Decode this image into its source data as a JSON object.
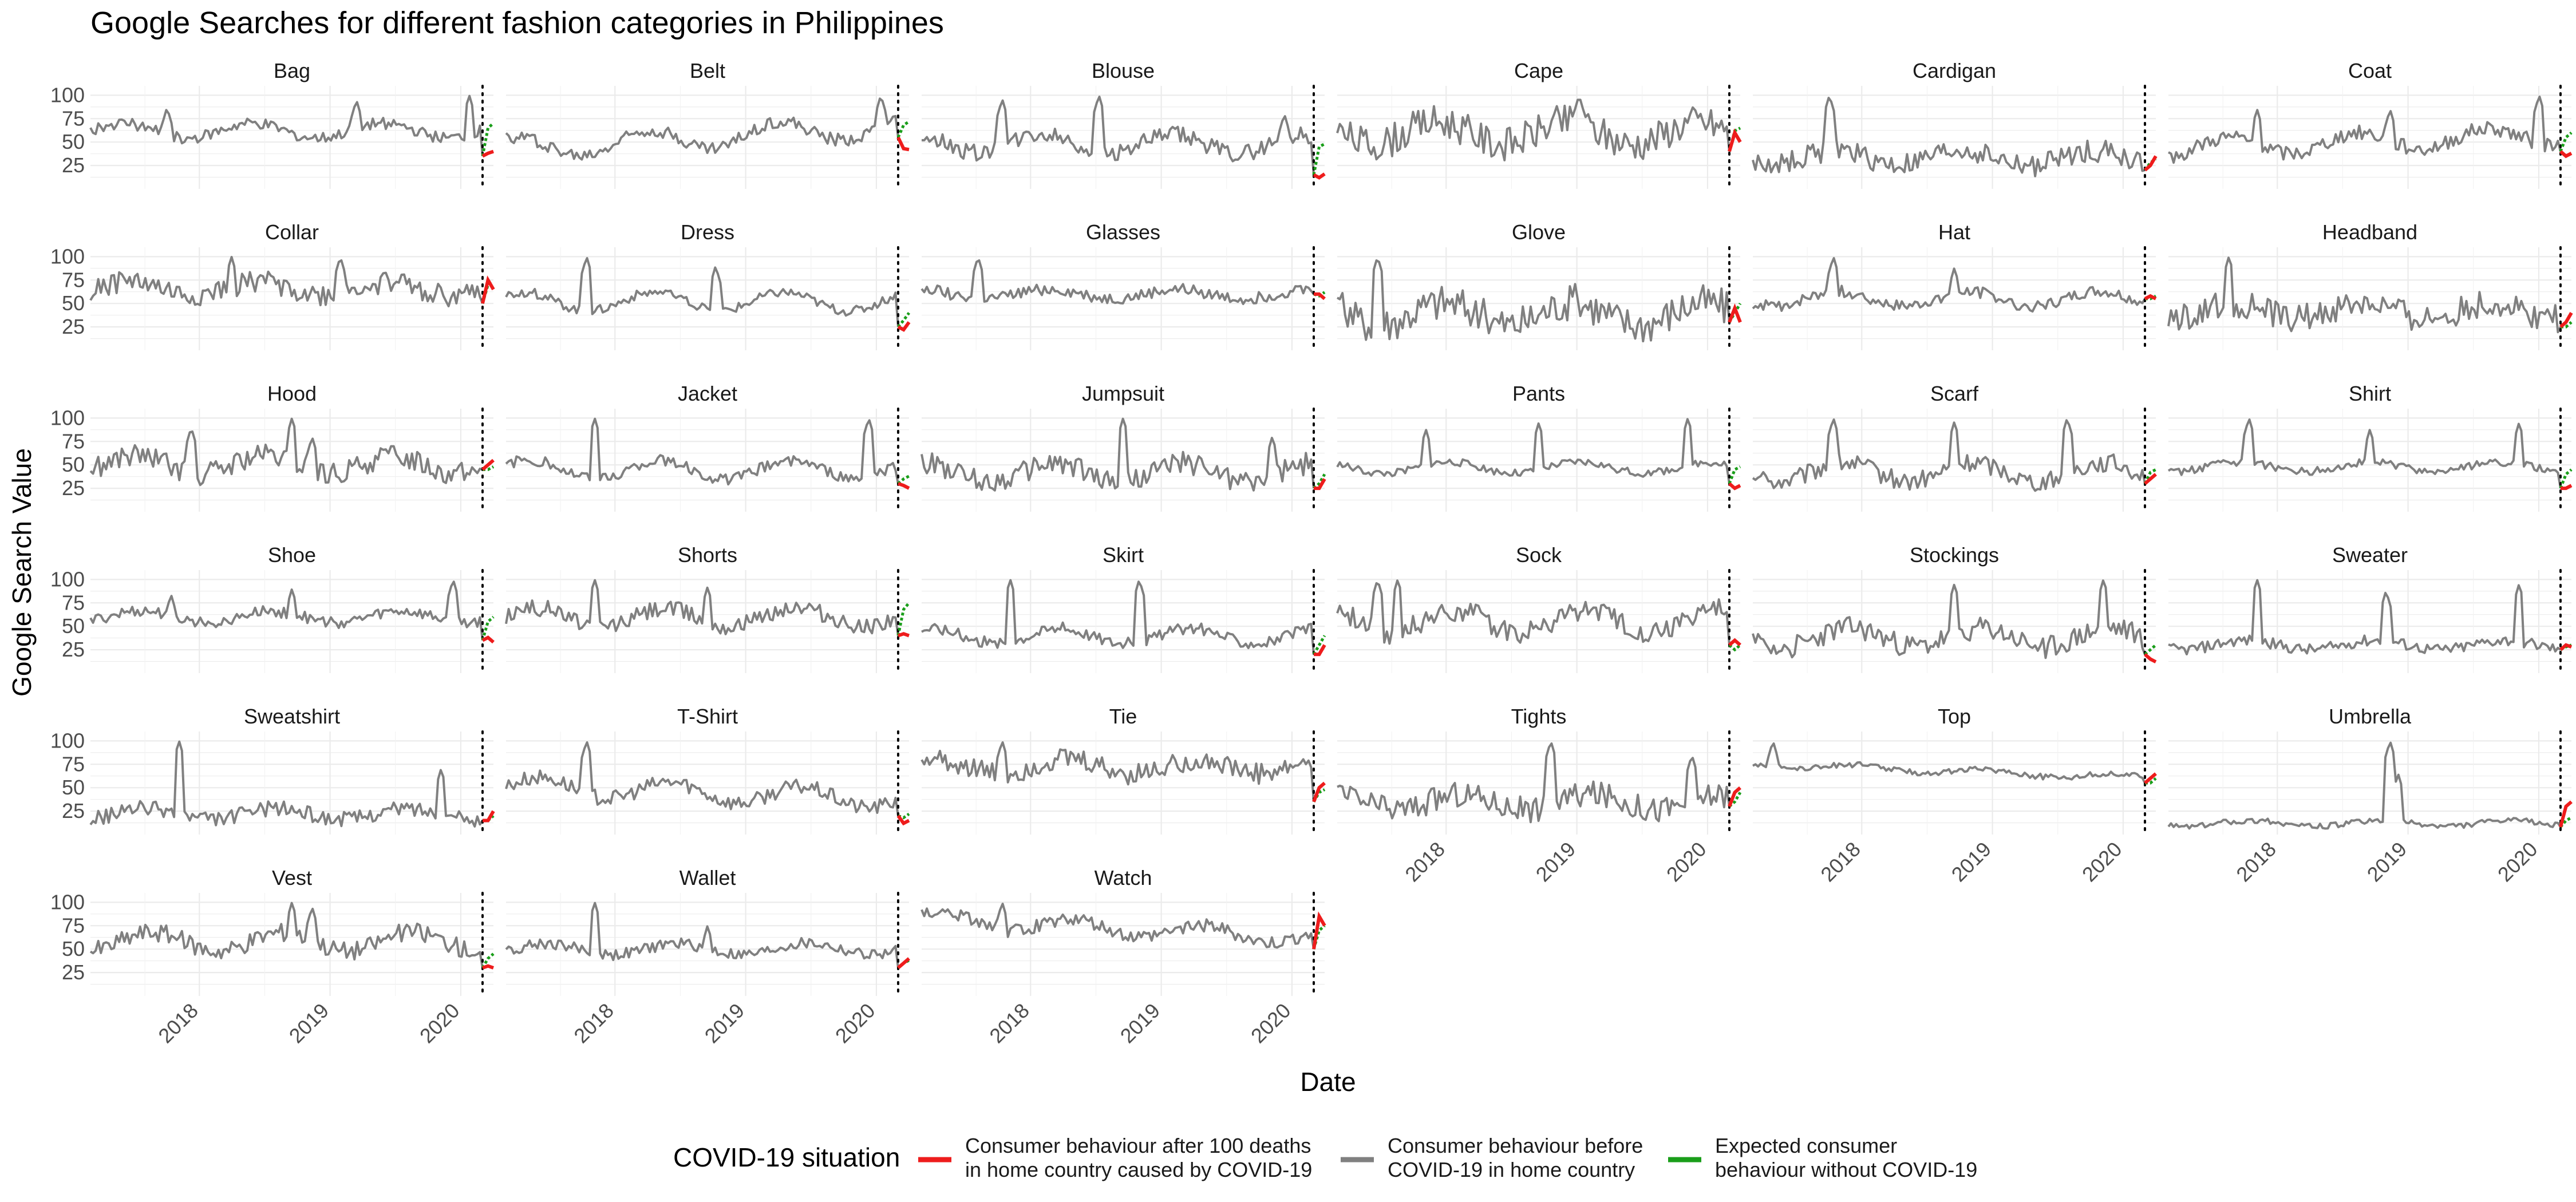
{
  "chart_data": {
    "type": "line",
    "title": "Google Searches for different fashion categories in Philippines",
    "xlabel": "Date",
    "ylabel": "Google Search Value",
    "x_range": [
      "2017-03",
      "2020-04"
    ],
    "x_ticks": [
      "2018",
      "2019",
      "2020"
    ],
    "y_ticks": [
      25,
      50,
      75,
      100
    ],
    "ylim": [
      0,
      110
    ],
    "covid_marker_date": "2020-03",
    "grid": true,
    "legend": {
      "title": "COVID-19 situation",
      "position": "bottom",
      "entries": [
        {
          "key": "after",
          "lines": [
            "Consumer behaviour after 100 deaths",
            "in home country caused by COVID-19"
          ],
          "color": "#ee1c1c"
        },
        {
          "key": "before",
          "lines": [
            "Consumer behaviour before",
            "COVID-19 in home country"
          ],
          "color": "#808080"
        },
        {
          "key": "expected",
          "lines": [
            "Expected consumer",
            "behaviour without COVID-19"
          ],
          "color": "#1a9e1a"
        }
      ]
    },
    "panels": [
      {
        "name": "Bag",
        "base": 62,
        "amp": 8,
        "noise": 6,
        "peaks": [
          [
            0.19,
            87
          ],
          [
            0.66,
            95
          ],
          [
            0.94,
            100
          ]
        ],
        "drop": 35,
        "after": [
          38,
          40
        ],
        "expected": [
          65,
          70
        ]
      },
      {
        "name": "Belt",
        "base": 55,
        "amp": 12,
        "noise": 7,
        "trend": 25,
        "peaks": [
          [
            0.93,
            100
          ]
        ],
        "drop": 55,
        "after": [
          43,
          42
        ],
        "expected": [
          68,
          72
        ]
      },
      {
        "name": "Blouse",
        "base": 48,
        "amp": 10,
        "noise": 9,
        "peaks": [
          [
            0.2,
            96
          ],
          [
            0.44,
            100
          ],
          [
            0.9,
            80
          ]
        ],
        "drop": 15,
        "after": [
          12,
          16
        ],
        "expected": [
          45,
          48
        ]
      },
      {
        "name": "Cape",
        "base": 60,
        "amp": 12,
        "noise": 18,
        "peaks": [
          [
            0.6,
            100
          ]
        ],
        "drop": 40,
        "after": [
          60,
          50
        ],
        "expected": [
          62,
          65
        ]
      },
      {
        "name": "Cardigan",
        "base": 33,
        "amp": 8,
        "noise": 12,
        "peaks": [
          [
            0.19,
            100
          ]
        ],
        "drop": 20,
        "after": [
          25,
          35
        ],
        "expected": [
          28,
          32
        ]
      },
      {
        "name": "Coat",
        "base": 50,
        "amp": 10,
        "noise": 8,
        "trend": 15,
        "peaks": [
          [
            0.22,
            85
          ],
          [
            0.55,
            85
          ],
          [
            0.92,
            100
          ]
        ],
        "drop": 40,
        "after": [
          35,
          38
        ],
        "expected": [
          55,
          60
        ]
      },
      {
        "name": "Collar",
        "base": 65,
        "amp": 8,
        "noise": 12,
        "peaks": [
          [
            0.35,
            100
          ],
          [
            0.62,
            100
          ]
        ],
        "drop": 50,
        "after": [
          75,
          65
        ],
        "expected": [
          70,
          72
        ]
      },
      {
        "name": "Dress",
        "base": 52,
        "amp": 10,
        "noise": 5,
        "peaks": [
          [
            0.2,
            100
          ],
          [
            0.52,
            90
          ]
        ],
        "drop": 25,
        "after": [
          22,
          30
        ],
        "expected": [
          32,
          40
        ]
      },
      {
        "name": "Glasses",
        "base": 60,
        "amp": 5,
        "noise": 6,
        "peaks": [
          [
            0.14,
            100
          ]
        ],
        "drop": 60,
        "after": [
          60,
          55
        ],
        "expected": [
          58,
          62
        ]
      },
      {
        "name": "Glove",
        "base": 40,
        "amp": 12,
        "noise": 20,
        "peaks": [
          [
            0.1,
            100
          ]
        ],
        "drop": 30,
        "after": [
          45,
          30
        ],
        "expected": [
          40,
          50
        ]
      },
      {
        "name": "Hat",
        "base": 55,
        "amp": 8,
        "noise": 6,
        "peaks": [
          [
            0.2,
            100
          ],
          [
            0.5,
            88
          ]
        ],
        "drop": 55,
        "after": [
          58,
          55
        ],
        "expected": [
          55,
          58
        ]
      },
      {
        "name": "Headband",
        "base": 42,
        "amp": 8,
        "noise": 15,
        "peaks": [
          [
            0.15,
            100
          ]
        ],
        "drop": 25,
        "after": [
          30,
          40
        ],
        "expected": [
          25,
          30
        ]
      },
      {
        "name": "Hood",
        "base": 50,
        "amp": 10,
        "noise": 12,
        "peaks": [
          [
            0.25,
            90
          ],
          [
            0.5,
            100
          ],
          [
            0.55,
            80
          ]
        ],
        "drop": 45,
        "after": [
          50,
          55
        ],
        "expected": [
          45,
          48
        ]
      },
      {
        "name": "Jacket",
        "base": 45,
        "amp": 10,
        "noise": 6,
        "peaks": [
          [
            0.22,
            100
          ],
          [
            0.9,
            100
          ]
        ],
        "drop": 30,
        "after": [
          28,
          25
        ],
        "expected": [
          35,
          38
        ]
      },
      {
        "name": "Jumpsuit",
        "base": 42,
        "amp": 10,
        "noise": 12,
        "peaks": [
          [
            0.5,
            100
          ],
          [
            0.87,
            80
          ]
        ],
        "drop": 25,
        "after": [
          25,
          35
        ],
        "expected": [
          30,
          40
        ]
      },
      {
        "name": "Pants",
        "base": 47,
        "amp": 6,
        "noise": 4,
        "peaks": [
          [
            0.22,
            88
          ],
          [
            0.5,
            95
          ],
          [
            0.87,
            100
          ]
        ],
        "drop": 30,
        "after": [
          25,
          28
        ],
        "expected": [
          45,
          48
        ]
      },
      {
        "name": "Scarf",
        "base": 42,
        "amp": 10,
        "noise": 10,
        "peaks": [
          [
            0.2,
            100
          ],
          [
            0.5,
            96
          ],
          [
            0.78,
            100
          ]
        ],
        "drop": 30,
        "after": [
          35,
          40
        ],
        "expected": [
          42,
          45
        ]
      },
      {
        "name": "Shirt",
        "base": 48,
        "amp": 5,
        "noise": 4,
        "peaks": [
          [
            0.2,
            100
          ],
          [
            0.5,
            88
          ],
          [
            0.87,
            95
          ]
        ],
        "drop": 25,
        "after": [
          25,
          28
        ],
        "expected": [
          40,
          45
        ]
      },
      {
        "name": "Shoe",
        "base": 60,
        "amp": 6,
        "noise": 6,
        "peaks": [
          [
            0.2,
            84
          ],
          [
            0.5,
            90
          ],
          [
            0.9,
            100
          ]
        ],
        "drop": 35,
        "after": [
          38,
          33
        ],
        "expected": [
          55,
          60
        ]
      },
      {
        "name": "Shorts",
        "base": 60,
        "amp": 10,
        "noise": 9,
        "peaks": [
          [
            0.22,
            100
          ],
          [
            0.5,
            92
          ]
        ],
        "drop": 40,
        "after": [
          42,
          40
        ],
        "expected": [
          68,
          75
        ]
      },
      {
        "name": "Skirt",
        "base": 40,
        "amp": 8,
        "noise": 6,
        "peaks": [
          [
            0.22,
            100
          ],
          [
            0.54,
            100
          ]
        ],
        "drop": 20,
        "after": [
          20,
          30
        ],
        "expected": [
          30,
          40
        ]
      },
      {
        "name": "Sock",
        "base": 55,
        "amp": 12,
        "noise": 12,
        "peaks": [
          [
            0.1,
            100
          ],
          [
            0.15,
            100
          ]
        ],
        "drop": 30,
        "after": [
          35,
          30
        ],
        "expected": [
          25,
          30
        ]
      },
      {
        "name": "Stockings",
        "base": 38,
        "amp": 10,
        "noise": 12,
        "peaks": [
          [
            0.5,
            95
          ],
          [
            0.87,
            100
          ]
        ],
        "drop": 20,
        "after": [
          15,
          12
        ],
        "expected": [
          25,
          30
        ]
      },
      {
        "name": "Sweater",
        "base": 30,
        "amp": 5,
        "noise": 6,
        "peaks": [
          [
            0.22,
            100
          ],
          [
            0.54,
            88
          ],
          [
            0.87,
            95
          ]
        ],
        "drop": 25,
        "after": [
          30,
          28
        ],
        "expected": [
          28,
          30
        ]
      },
      {
        "name": "Sweatshirt",
        "base": 22,
        "amp": 6,
        "noise": 8,
        "peaks": [
          [
            0.22,
            100
          ],
          [
            0.87,
            70
          ]
        ],
        "drop": 15,
        "after": [
          15,
          25
        ],
        "expected": [
          15,
          20
        ]
      },
      {
        "name": "T-Shirt",
        "base": 45,
        "amp": 10,
        "noise": 8,
        "trend": -15,
        "peaks": [
          [
            0.2,
            100
          ]
        ],
        "drop": 20,
        "after": [
          12,
          15
        ],
        "expected": [
          18,
          22
        ]
      },
      {
        "name": "Tie",
        "base": 72,
        "amp": 8,
        "noise": 12,
        "peaks": [
          [
            0.2,
            100
          ]
        ],
        "drop": 35,
        "after": [
          50,
          55
        ],
        "expected": [
          45,
          48
        ]
      },
      {
        "name": "Tights",
        "base": 35,
        "amp": 8,
        "noise": 14,
        "peaks": [
          [
            0.53,
            100
          ],
          [
            0.88,
            85
          ]
        ],
        "drop": 30,
        "after": [
          45,
          50
        ],
        "expected": [
          35,
          45
        ]
      },
      {
        "name": "Top",
        "base": 68,
        "amp": 3,
        "noise": 3,
        "trend": -15,
        "peaks": [
          [
            0.05,
            100
          ]
        ],
        "drop": 55,
        "after": [
          60,
          65
        ],
        "expected": [
          55,
          60
        ]
      },
      {
        "name": "Umbrella",
        "base": 12,
        "amp": 3,
        "noise": 3,
        "peaks": [
          [
            0.55,
            100
          ],
          [
            0.57,
            65
          ]
        ],
        "drop": 8,
        "after": [
          30,
          35
        ],
        "expected": [
          15,
          18
        ]
      },
      {
        "name": "Vest",
        "base": 58,
        "amp": 10,
        "noise": 10,
        "peaks": [
          [
            0.5,
            100
          ],
          [
            0.55,
            95
          ]
        ],
        "drop": 30,
        "after": [
          32,
          30
        ],
        "expected": [
          40,
          45
        ]
      },
      {
        "name": "Wallet",
        "base": 50,
        "amp": 6,
        "noise": 6,
        "peaks": [
          [
            0.22,
            100
          ],
          [
            0.5,
            75
          ]
        ],
        "drop": 30,
        "after": [
          35,
          40
        ],
        "expected": [
          35,
          38
        ]
      },
      {
        "name": "Watch",
        "base": 72,
        "amp": 8,
        "noise": 7,
        "trend": -20,
        "peaks": [
          [
            0.2,
            100
          ]
        ],
        "drop": 50,
        "after": [
          85,
          75
        ],
        "expected": [
          70,
          75
        ]
      }
    ]
  }
}
